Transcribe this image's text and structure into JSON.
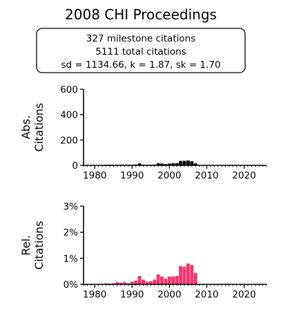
{
  "title": "2008 CHI Proceedings",
  "stats": {
    "line1": "327 milestone citations",
    "line2": "5111 total citations",
    "line3": "sd = 1134.66, k = 1.87, sk = 1.70"
  },
  "colors": {
    "abs": "#000000",
    "rel": "#f7336e"
  },
  "chart_data": [
    {
      "type": "bar",
      "ylabel_lines": [
        "Abs.",
        "Citations"
      ],
      "xlim": [
        1977,
        2026
      ],
      "ylim": [
        0,
        600
      ],
      "xticks": [
        "1980",
        "1990",
        "2000",
        "2010",
        "2020"
      ],
      "yticks": [
        "0",
        "200",
        "400",
        "600"
      ],
      "x": [
        1983,
        1984,
        1985,
        1986,
        1987,
        1988,
        1989,
        1990,
        1991,
        1992,
        1993,
        1994,
        1995,
        1996,
        1997,
        1998,
        1999,
        2000,
        2001,
        2002,
        2003,
        2004,
        2005,
        2006,
        2007
      ],
      "values": [
        1,
        1,
        1,
        2,
        2,
        2,
        1,
        3,
        6,
        15,
        6,
        4,
        4,
        6,
        16,
        14,
        10,
        14,
        16,
        17,
        35,
        35,
        38,
        32,
        15
      ]
    },
    {
      "type": "bar",
      "ylabel_lines": [
        "Rel.",
        "Citations"
      ],
      "xlim": [
        1977,
        2026
      ],
      "ylim": [
        0,
        3
      ],
      "xticks": [
        "1980",
        "1990",
        "2000",
        "2010",
        "2020"
      ],
      "yticks": [
        "0%",
        "1%",
        "2%",
        "3%"
      ],
      "x": [
        1983,
        1984,
        1985,
        1986,
        1987,
        1988,
        1989,
        1990,
        1991,
        1992,
        1993,
        1994,
        1995,
        1996,
        1997,
        1998,
        1999,
        2000,
        2001,
        2002,
        2003,
        2004,
        2005,
        2006,
        2007
      ],
      "values": [
        0.04,
        0.03,
        0.04,
        0.08,
        0.06,
        0.08,
        0.04,
        0.1,
        0.14,
        0.32,
        0.18,
        0.1,
        0.12,
        0.18,
        0.38,
        0.3,
        0.22,
        0.3,
        0.3,
        0.32,
        0.7,
        0.68,
        0.8,
        0.74,
        0.44
      ]
    }
  ]
}
